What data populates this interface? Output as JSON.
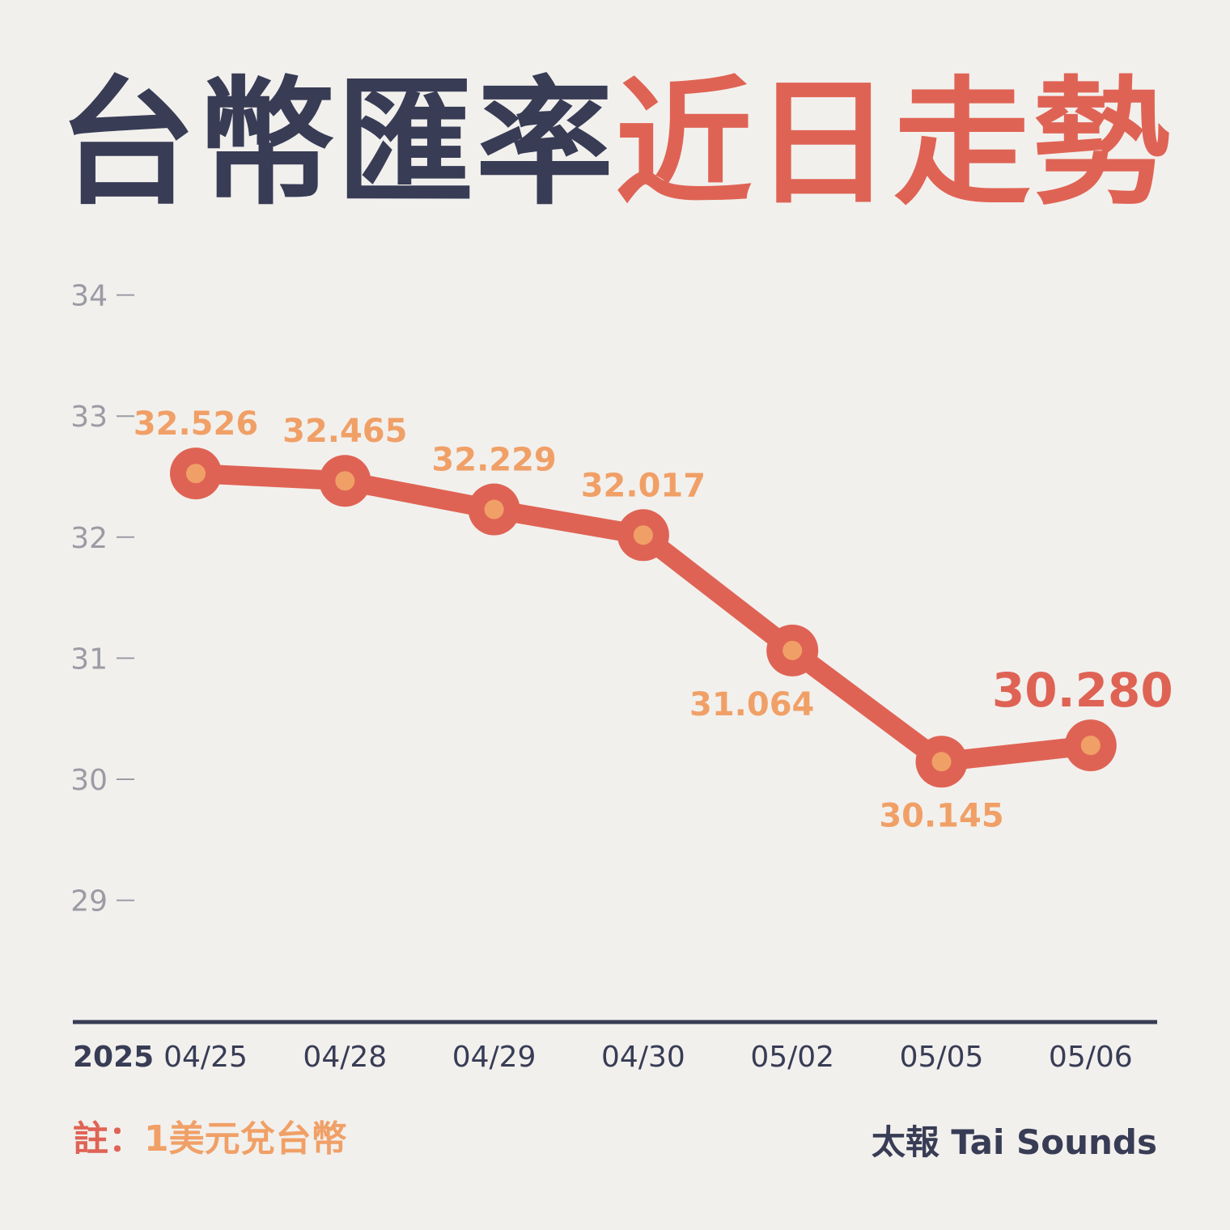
{
  "title": {
    "part1": "台幣匯率",
    "part2": "近日走勢"
  },
  "colors": {
    "background": "#f2f0ed",
    "navy": "#383c55",
    "red": "#df6354",
    "orange": "#f0a067",
    "grey": "#9b9ba4"
  },
  "chart_data": {
    "type": "line",
    "year_label": "2025",
    "categories": [
      "04/25",
      "04/28",
      "04/29",
      "04/30",
      "05/02",
      "05/05",
      "05/06"
    ],
    "values": [
      32.526,
      32.465,
      32.229,
      32.017,
      31.064,
      30.145,
      30.28
    ],
    "data_labels": [
      "32.526",
      "32.465",
      "32.229",
      "32.017",
      "31.064",
      "30.145",
      "30.280"
    ],
    "label_positions": [
      "above",
      "above",
      "above",
      "above",
      "below",
      "below",
      "above"
    ],
    "highlight_last": true,
    "yticks": [
      29,
      30,
      31,
      32,
      33,
      34
    ],
    "ylim": [
      28.2,
      34.4
    ],
    "grid": false
  },
  "footnote": {
    "label": "註：",
    "text": "1美元兌台幣"
  },
  "source": "太報 Tai Sounds"
}
